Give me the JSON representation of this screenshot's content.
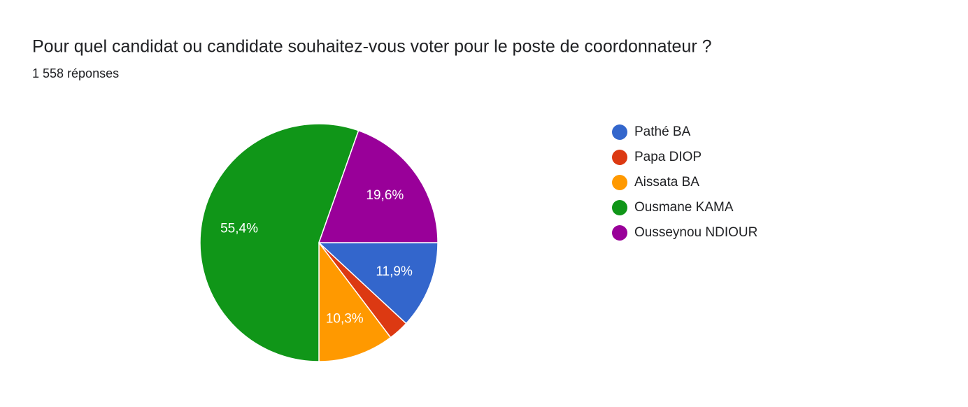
{
  "chart_data": {
    "type": "pie",
    "title": "Pour quel candidat ou candidate souhaitez-vous voter pour le poste de coordonnateur ?",
    "subtitle": "1 558 réponses",
    "categories": [
      "Pathé BA",
      "Papa DIOP",
      "Aissata BA",
      "Ousmane KAMA",
      "Ousseynou NDIOUR"
    ],
    "values": [
      11.9,
      2.8,
      10.3,
      55.4,
      19.6
    ],
    "value_labels": [
      "11,9%",
      null,
      "10,3%",
      "55,4%",
      "19,6%"
    ],
    "colors": [
      "#3366cc",
      "#dc3912",
      "#ff9900",
      "#109618",
      "#990099"
    ],
    "legend": "right"
  }
}
